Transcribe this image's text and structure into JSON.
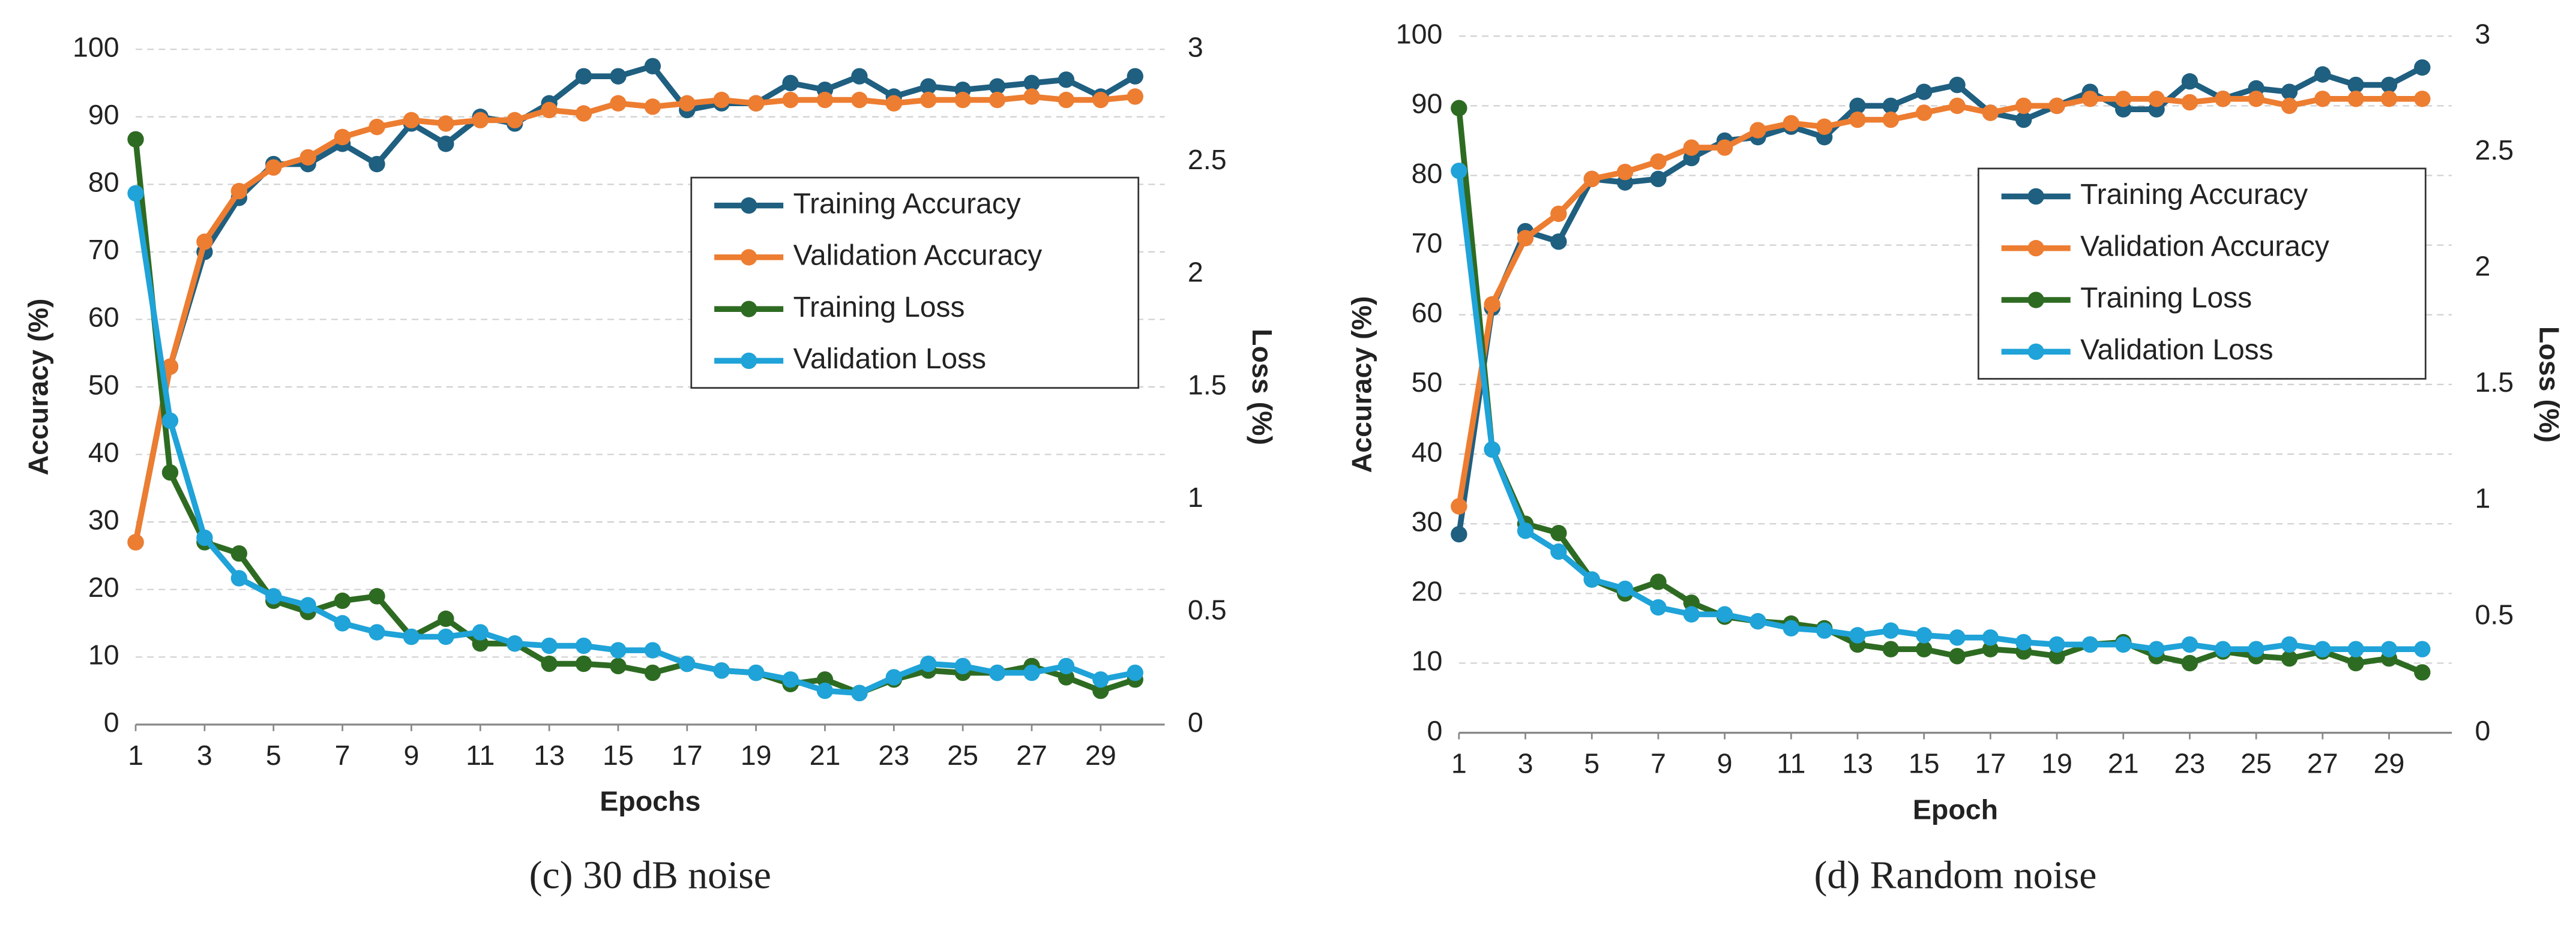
{
  "chart_data": [
    {
      "type": "line",
      "caption": "(c) 30 dB noise",
      "xlabel": "Epochs",
      "ylabel": "Accuracy (%)",
      "y2label": "Loss (%)",
      "x": [
        1,
        2,
        3,
        4,
        5,
        6,
        7,
        8,
        9,
        10,
        11,
        12,
        13,
        14,
        15,
        16,
        17,
        18,
        19,
        20,
        21,
        22,
        23,
        24,
        25,
        26,
        27,
        28,
        29,
        30
      ],
      "xlim": [
        1,
        30
      ],
      "xticks": [
        1,
        3,
        5,
        7,
        9,
        11,
        13,
        15,
        17,
        19,
        21,
        23,
        25,
        27,
        29
      ],
      "ylim": [
        0,
        100
      ],
      "yticks": [
        0,
        10,
        20,
        30,
        40,
        50,
        60,
        70,
        80,
        90,
        100
      ],
      "y2lim": [
        0,
        3
      ],
      "y2ticks": [
        0,
        0.5,
        1,
        1.5,
        2,
        2.5,
        3
      ],
      "grid": true,
      "legend": "right",
      "series": [
        {
          "name": "Training Accuracy",
          "color": "#1f5f80",
          "values": [
            27,
            53,
            70,
            78,
            83,
            83,
            86,
            83,
            89,
            86,
            90,
            89,
            92,
            96,
            96,
            97.5,
            91,
            92,
            92,
            95,
            94,
            96,
            93,
            94.5,
            94,
            94.5,
            95,
            95.5,
            93,
            96
          ]
        },
        {
          "name": "Validation Accuracy",
          "color": "#ed7d31",
          "values": [
            27,
            53,
            71.5,
            79,
            82.5,
            84,
            87,
            88.5,
            89.5,
            89,
            89.5,
            89.5,
            91,
            90.5,
            92,
            91.5,
            92,
            92.5,
            92,
            92.5,
            92.5,
            92.5,
            92,
            92.5,
            92.5,
            92.5,
            93,
            92.5,
            92.5,
            93
          ]
        },
        {
          "name": "Training Loss",
          "color": "#2e6b22",
          "axis": "y2",
          "values": [
            2.6,
            1.12,
            0.81,
            0.76,
            0.55,
            0.5,
            0.55,
            0.57,
            0.39,
            0.47,
            0.36,
            0.36,
            0.27,
            0.27,
            0.26,
            0.23,
            0.27,
            0.24,
            0.23,
            0.18,
            0.2,
            0.14,
            0.2,
            0.24,
            0.23,
            0.23,
            0.26,
            0.21,
            0.15,
            0.2
          ]
        },
        {
          "name": "Validation Loss",
          "color": "#1fa3d8",
          "axis": "y2",
          "values": [
            2.36,
            1.35,
            0.83,
            0.65,
            0.57,
            0.53,
            0.45,
            0.41,
            0.39,
            0.39,
            0.41,
            0.36,
            0.35,
            0.35,
            0.33,
            0.33,
            0.27,
            0.24,
            0.23,
            0.2,
            0.15,
            0.14,
            0.21,
            0.27,
            0.26,
            0.23,
            0.23,
            0.26,
            0.2,
            0.23
          ]
        }
      ]
    },
    {
      "type": "line",
      "caption": "(d) Random noise",
      "xlabel": "Epoch",
      "ylabel": "Accuracy (%)",
      "y2label": "Loss (%)",
      "x": [
        1,
        2,
        3,
        4,
        5,
        6,
        7,
        8,
        9,
        10,
        11,
        12,
        13,
        14,
        15,
        16,
        17,
        18,
        19,
        20,
        21,
        22,
        23,
        24,
        25,
        26,
        27,
        28,
        29,
        30
      ],
      "xlim": [
        1,
        30
      ],
      "xticks": [
        1,
        3,
        5,
        7,
        9,
        11,
        13,
        15,
        17,
        19,
        21,
        23,
        25,
        27,
        29
      ],
      "ylim": [
        0,
        100
      ],
      "yticks": [
        0,
        10,
        20,
        30,
        40,
        50,
        60,
        70,
        80,
        90,
        100
      ],
      "y2lim": [
        0,
        3
      ],
      "y2ticks": [
        0,
        0.5,
        1,
        1.5,
        2,
        2.5,
        3
      ],
      "grid": true,
      "legend": "right",
      "series": [
        {
          "name": "Training Accuracy",
          "color": "#1f5f80",
          "values": [
            28.5,
            61,
            72,
            70.5,
            79.5,
            79,
            79.5,
            82.5,
            85,
            85.5,
            87,
            85.5,
            90,
            90,
            92,
            93,
            89,
            88,
            90,
            92,
            89.5,
            89.5,
            93.5,
            91,
            92.5,
            92,
            94.5,
            93,
            93,
            95.5
          ]
        },
        {
          "name": "Validation Accuracy",
          "color": "#ed7d31",
          "values": [
            32.5,
            61.5,
            71,
            74.5,
            79.5,
            80.5,
            82,
            84,
            84,
            86.5,
            87.5,
            87,
            88,
            88,
            89,
            90,
            89,
            90,
            90,
            91,
            91,
            91,
            90.5,
            91,
            91,
            90,
            91,
            91,
            91,
            91
          ]
        },
        {
          "name": "Training Loss",
          "color": "#2e6b22",
          "axis": "y2",
          "values": [
            2.69,
            1.22,
            0.9,
            0.86,
            0.66,
            0.6,
            0.65,
            0.56,
            0.5,
            0.48,
            0.47,
            0.45,
            0.38,
            0.36,
            0.36,
            0.33,
            0.36,
            0.35,
            0.33,
            0.38,
            0.39,
            0.33,
            0.3,
            0.35,
            0.33,
            0.32,
            0.35,
            0.3,
            0.32,
            0.26
          ]
        },
        {
          "name": "Validation Loss",
          "color": "#1fa3d8",
          "axis": "y2",
          "values": [
            2.42,
            1.22,
            0.87,
            0.78,
            0.66,
            0.62,
            0.54,
            0.51,
            0.51,
            0.48,
            0.45,
            0.44,
            0.42,
            0.44,
            0.42,
            0.41,
            0.41,
            0.39,
            0.38,
            0.38,
            0.38,
            0.36,
            0.38,
            0.36,
            0.36,
            0.38,
            0.36,
            0.36,
            0.36,
            0.36
          ]
        }
      ]
    }
  ]
}
